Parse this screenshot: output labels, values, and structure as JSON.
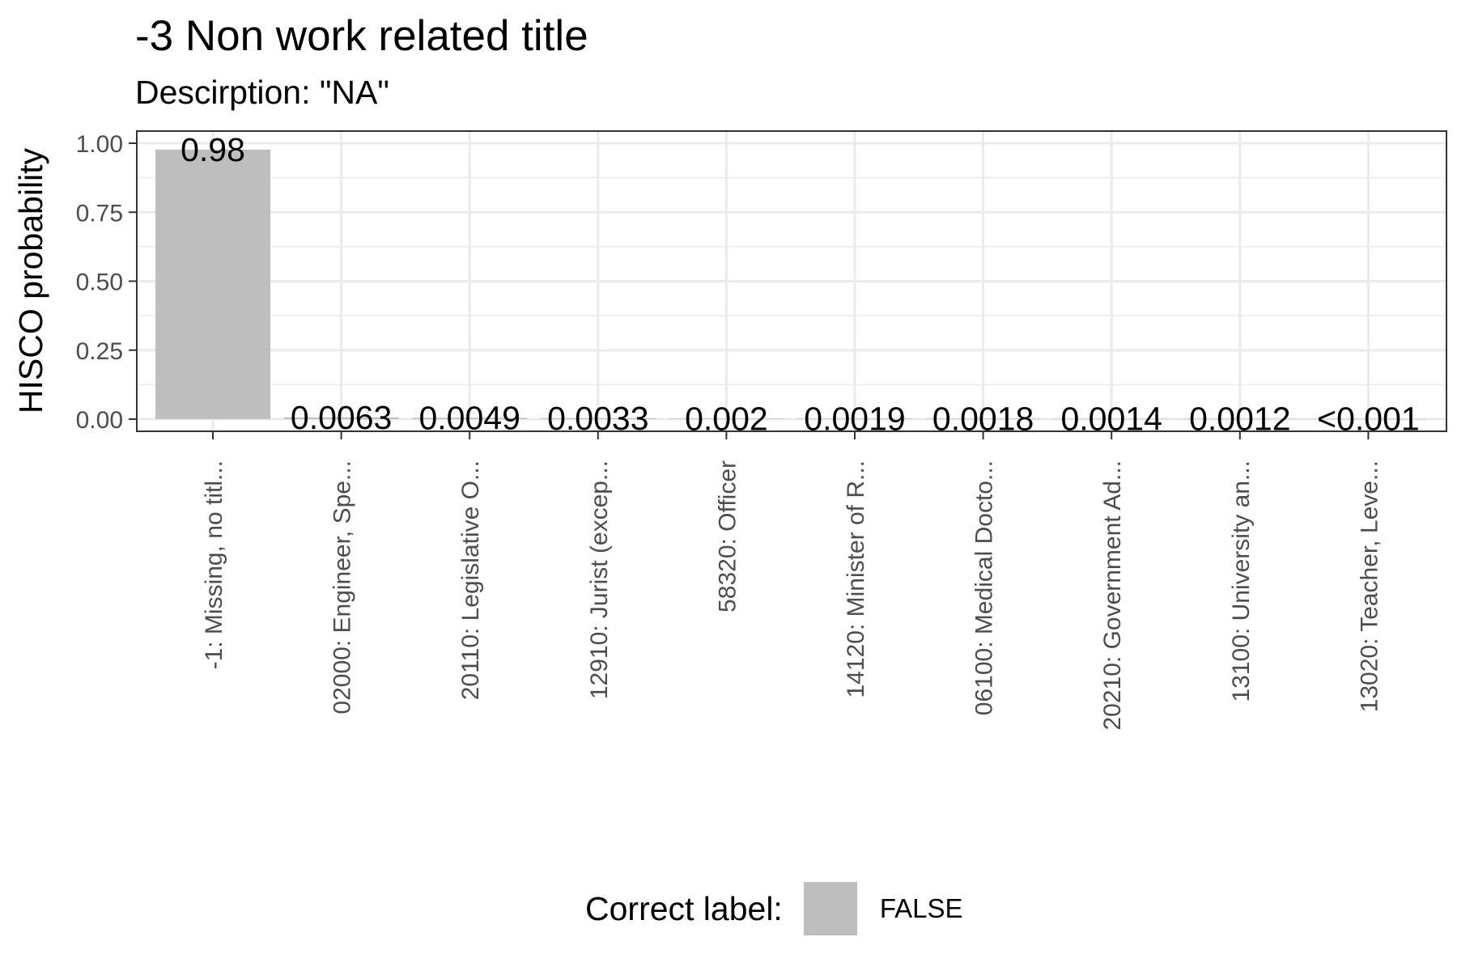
{
  "title": "-3 Non work related title",
  "subtitle": "Descirption: \"NA\"",
  "chart_data": {
    "type": "bar",
    "title": "-3 Non work related title",
    "subtitle": "Descirption: \"NA\"",
    "xlabel": "",
    "ylabel": "HISCO probability",
    "ylim": [
      0,
      1
    ],
    "yticks": [
      "0.00",
      "0.25",
      "0.50",
      "0.75",
      "1.00"
    ],
    "grid": true,
    "legend_position": "bottom",
    "categories": [
      "-1: Missing, no titl...",
      "02000: Engineer, Spe...",
      "20110: Legislative O...",
      "12910: Jurist (excep...",
      "58320: Officer",
      "14120: Minister of R...",
      "06100: Medical Docto...",
      "20210: Government Ad...",
      "13100: University an...",
      "13020: Teacher, Leve..."
    ],
    "values": [
      0.977,
      0.0063,
      0.0049,
      0.0033,
      0.002,
      0.0019,
      0.0018,
      0.0014,
      0.0012,
      0.0009
    ],
    "data_labels": [
      "0.98",
      "0.0063",
      "0.0049",
      "0.0033",
      "0.002",
      "0.0019",
      "0.0018",
      "0.0014",
      "0.0012",
      "<0.001"
    ],
    "series": [
      {
        "name": "FALSE",
        "color": "#bebebe"
      }
    ]
  },
  "legend": {
    "title": "Correct label:",
    "items": [
      {
        "label": "FALSE",
        "color": "#bebebe"
      }
    ]
  }
}
